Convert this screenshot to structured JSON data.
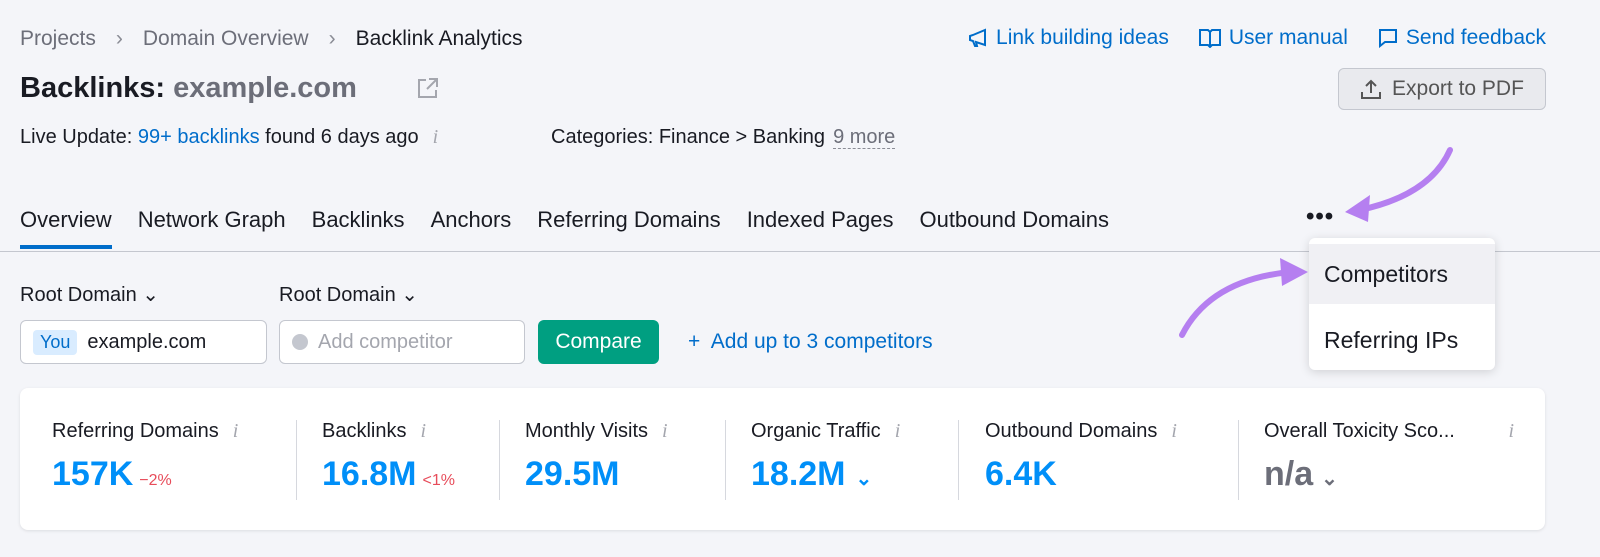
{
  "breadcrumb": [
    "Projects",
    "Domain Overview",
    "Backlink Analytics"
  ],
  "top_links": [
    {
      "icon": "megaphone-icon",
      "label": "Link building ideas"
    },
    {
      "icon": "book-icon",
      "label": "User manual"
    },
    {
      "icon": "chat-icon",
      "label": "Send feedback"
    }
  ],
  "title": {
    "prefix": "Backlinks:",
    "domain": "example.com"
  },
  "export_label": "Export to PDF",
  "live": {
    "prefix": "Live Update:",
    "link": "99+ backlinks",
    "suffix": "found 6 days ago"
  },
  "categories": {
    "text": "Categories: Finance > Banking",
    "more": "9 more"
  },
  "tabs": [
    "Overview",
    "Network Graph",
    "Backlinks",
    "Anchors",
    "Referring Domains",
    "Indexed Pages",
    "Outbound Domains"
  ],
  "more_menu": [
    "Competitors",
    "Referring IPs"
  ],
  "selectors": [
    "Root Domain",
    "Root Domain"
  ],
  "you_badge": "You",
  "domain_value": "example.com",
  "competitor_placeholder": "Add competitor",
  "compare_label": "Compare",
  "add_competitors": "Add up to 3 competitors",
  "metrics": [
    {
      "label": "Referring Domains",
      "value": "157K",
      "change": "−2%"
    },
    {
      "label": "Backlinks",
      "value": "16.8M",
      "change": "<1%"
    },
    {
      "label": "Monthly Visits",
      "value": "29.5M"
    },
    {
      "label": "Organic Traffic",
      "value": "18.2M"
    },
    {
      "label": "Outbound Domains",
      "value": "6.4K"
    },
    {
      "label": "Overall Toxicity Sco...",
      "value": "n/a"
    }
  ],
  "colors": {
    "link": "#006dca",
    "metric": "#008ff8",
    "compare": "#009f81",
    "negative": "#e74c5a",
    "annotation_arrow": "#b57ff0"
  }
}
